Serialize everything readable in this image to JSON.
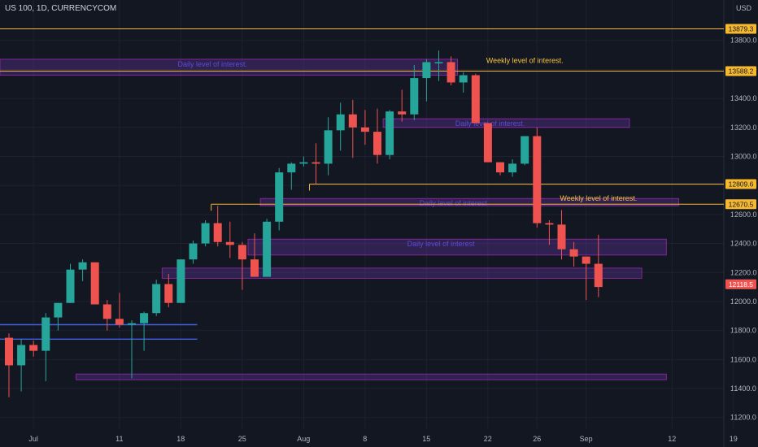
{
  "header": {
    "symbol": "US 100, 1D, CURRENCYCOM",
    "currency": "USD"
  },
  "colors": {
    "background": "#131722",
    "grid": "#1e2230",
    "up": "#26a69a",
    "down": "#ef5350",
    "zone_fill": "rgba(123,63,200,0.28)",
    "zone_stroke": "#9c27b0",
    "weekly_line": "#f5b82e",
    "blue_line": "#3f63e0",
    "axis_text": "#b2b5be"
  },
  "chart_data": {
    "type": "candlestick",
    "title": "US 100, 1D, CURRENCYCOM",
    "y_unit": "USD",
    "ylim": [
      11120,
      14000
    ],
    "y_ticks": [
      "11200.0",
      "11400.0",
      "11600.0",
      "11800.0",
      "12000.0",
      "12200.0",
      "12400.0",
      "12600.0",
      "12800.0",
      "13000.0",
      "13200.0",
      "13400.0",
      "13600.0",
      "13800.0"
    ],
    "x_ticks": [
      {
        "label": "Jul",
        "bar": 1
      },
      {
        "label": "11",
        "bar": 8
      },
      {
        "label": "18",
        "bar": 13
      },
      {
        "label": "25",
        "bar": 18
      },
      {
        "label": "Aug",
        "bar": 23
      },
      {
        "label": "8",
        "bar": 28
      },
      {
        "label": "15",
        "bar": 33
      },
      {
        "label": "22",
        "bar": 38
      },
      {
        "label": "26",
        "bar": 42
      },
      {
        "label": "Sep",
        "bar": 46
      },
      {
        "label": "12",
        "bar": 53
      },
      {
        "label": "19",
        "bar": 58
      }
    ],
    "candles": [
      {
        "o": 11750,
        "h": 11780,
        "l": 11340,
        "c": 11560
      },
      {
        "o": 11560,
        "h": 11740,
        "l": 11380,
        "c": 11700
      },
      {
        "o": 11700,
        "h": 11730,
        "l": 11620,
        "c": 11660
      },
      {
        "o": 11660,
        "h": 11920,
        "l": 11450,
        "c": 11890
      },
      {
        "o": 11890,
        "h": 11990,
        "l": 11800,
        "c": 11990
      },
      {
        "o": 11990,
        "h": 12260,
        "l": 11990,
        "c": 12220
      },
      {
        "o": 12220,
        "h": 12290,
        "l": 12140,
        "c": 12270
      },
      {
        "o": 12270,
        "h": 12270,
        "l": 11990,
        "c": 11980
      },
      {
        "o": 11980,
        "h": 12010,
        "l": 11800,
        "c": 11880
      },
      {
        "o": 11880,
        "h": 12060,
        "l": 11820,
        "c": 11840
      },
      {
        "o": 11840,
        "h": 11870,
        "l": 11470,
        "c": 11850
      },
      {
        "o": 11850,
        "h": 11930,
        "l": 11660,
        "c": 11920
      },
      {
        "o": 11920,
        "h": 12150,
        "l": 11900,
        "c": 12120
      },
      {
        "o": 12120,
        "h": 12190,
        "l": 11960,
        "c": 11990
      },
      {
        "o": 11990,
        "h": 12290,
        "l": 11990,
        "c": 12290
      },
      {
        "o": 12290,
        "h": 12420,
        "l": 12260,
        "c": 12400
      },
      {
        "o": 12400,
        "h": 12560,
        "l": 12380,
        "c": 12540
      },
      {
        "o": 12540,
        "h": 12660,
        "l": 12380,
        "c": 12410
      },
      {
        "o": 12410,
        "h": 12550,
        "l": 12300,
        "c": 12390
      },
      {
        "o": 12390,
        "h": 12410,
        "l": 12080,
        "c": 12290
      },
      {
        "o": 12290,
        "h": 12470,
        "l": 12180,
        "c": 12170
      },
      {
        "o": 12170,
        "h": 12570,
        "l": 12170,
        "c": 12550
      },
      {
        "o": 12550,
        "h": 12920,
        "l": 12490,
        "c": 12890
      },
      {
        "o": 12890,
        "h": 12960,
        "l": 12770,
        "c": 12950
      },
      {
        "o": 12950,
        "h": 13000,
        "l": 12930,
        "c": 12960
      },
      {
        "o": 12960,
        "h": 13090,
        "l": 12810,
        "c": 12950
      },
      {
        "o": 12950,
        "h": 13270,
        "l": 12870,
        "c": 13180
      },
      {
        "o": 13180,
        "h": 13370,
        "l": 13040,
        "c": 13290
      },
      {
        "o": 13290,
        "h": 13390,
        "l": 12990,
        "c": 13200
      },
      {
        "o": 13200,
        "h": 13320,
        "l": 13080,
        "c": 13170
      },
      {
        "o": 13170,
        "h": 13330,
        "l": 12950,
        "c": 13010
      },
      {
        "o": 13010,
        "h": 13320,
        "l": 12980,
        "c": 13310
      },
      {
        "o": 13310,
        "h": 13460,
        "l": 13240,
        "c": 13290
      },
      {
        "o": 13290,
        "h": 13630,
        "l": 13250,
        "c": 13540
      },
      {
        "o": 13540,
        "h": 13670,
        "l": 13380,
        "c": 13650
      },
      {
        "o": 13650,
        "h": 13730,
        "l": 13520,
        "c": 13650
      },
      {
        "o": 13650,
        "h": 13690,
        "l": 13490,
        "c": 13510
      },
      {
        "o": 13510,
        "h": 13580,
        "l": 13440,
        "c": 13560
      },
      {
        "o": 13560,
        "h": 13570,
        "l": 13230,
        "c": 13230
      },
      {
        "o": 13230,
        "h": 13230,
        "l": 12960,
        "c": 12960
      },
      {
        "o": 12960,
        "h": 12940,
        "l": 12870,
        "c": 12890
      },
      {
        "o": 12890,
        "h": 12980,
        "l": 12860,
        "c": 12950
      },
      {
        "o": 12950,
        "h": 13140,
        "l": 12940,
        "c": 13140
      },
      {
        "o": 13140,
        "h": 13200,
        "l": 12510,
        "c": 12540
      },
      {
        "o": 12540,
        "h": 12560,
        "l": 12390,
        "c": 12530
      },
      {
        "o": 12530,
        "h": 12630,
        "l": 12290,
        "c": 12360
      },
      {
        "o": 12360,
        "h": 12410,
        "l": 12240,
        "c": 12310
      },
      {
        "o": 12310,
        "h": 12300,
        "l": 12010,
        "c": 12260
      },
      {
        "o": 12260,
        "h": 12460,
        "l": 12030,
        "c": 12100
      }
    ],
    "horizontal_levels": [
      {
        "value": 13879.3,
        "label": "13879.3",
        "kind": "weekly",
        "from_bar": 0
      },
      {
        "value": 13588.2,
        "label": "13588.2",
        "kind": "weekly",
        "from_bar": 0
      },
      {
        "value": 12809.6,
        "label": "12809.6",
        "kind": "weekly",
        "from_bar": 25
      },
      {
        "value": 12670.5,
        "label": "12670.5",
        "kind": "weekly",
        "from_bar": 17
      }
    ],
    "current_price": {
      "value": 12118.5,
      "label": "12118.5"
    },
    "zones": [
      {
        "top": 13670,
        "bottom": 13560,
        "from_bar": 0,
        "to_bar": 36,
        "label": "Daily level of interest."
      },
      {
        "top": 13260,
        "bottom": 13200,
        "from_bar": 31,
        "to_bar": 50,
        "label": "Daily level of interest."
      },
      {
        "top": 12710,
        "bottom": 12660,
        "from_bar": 21,
        "to_bar": 54,
        "label": "Daily level of interest"
      },
      {
        "top": 12430,
        "bottom": 12320,
        "from_bar": 20,
        "to_bar": 53,
        "label": "Daily level of interest"
      },
      {
        "top": 12230,
        "bottom": 12160,
        "from_bar": 13,
        "to_bar": 51,
        "label": ""
      },
      {
        "top": 11500,
        "bottom": 11460,
        "from_bar": 6,
        "to_bar": 53,
        "label": ""
      }
    ],
    "blue_lines": [
      {
        "value": 11840,
        "to_bar": 15
      },
      {
        "value": 11740,
        "to_bar": 15
      }
    ],
    "annotations": [
      {
        "text": "Weekly level of interest.",
        "value": 13660,
        "bar": 42
      },
      {
        "text": "Weekly level of interest.",
        "value": 12710,
        "bar": 48
      }
    ]
  }
}
